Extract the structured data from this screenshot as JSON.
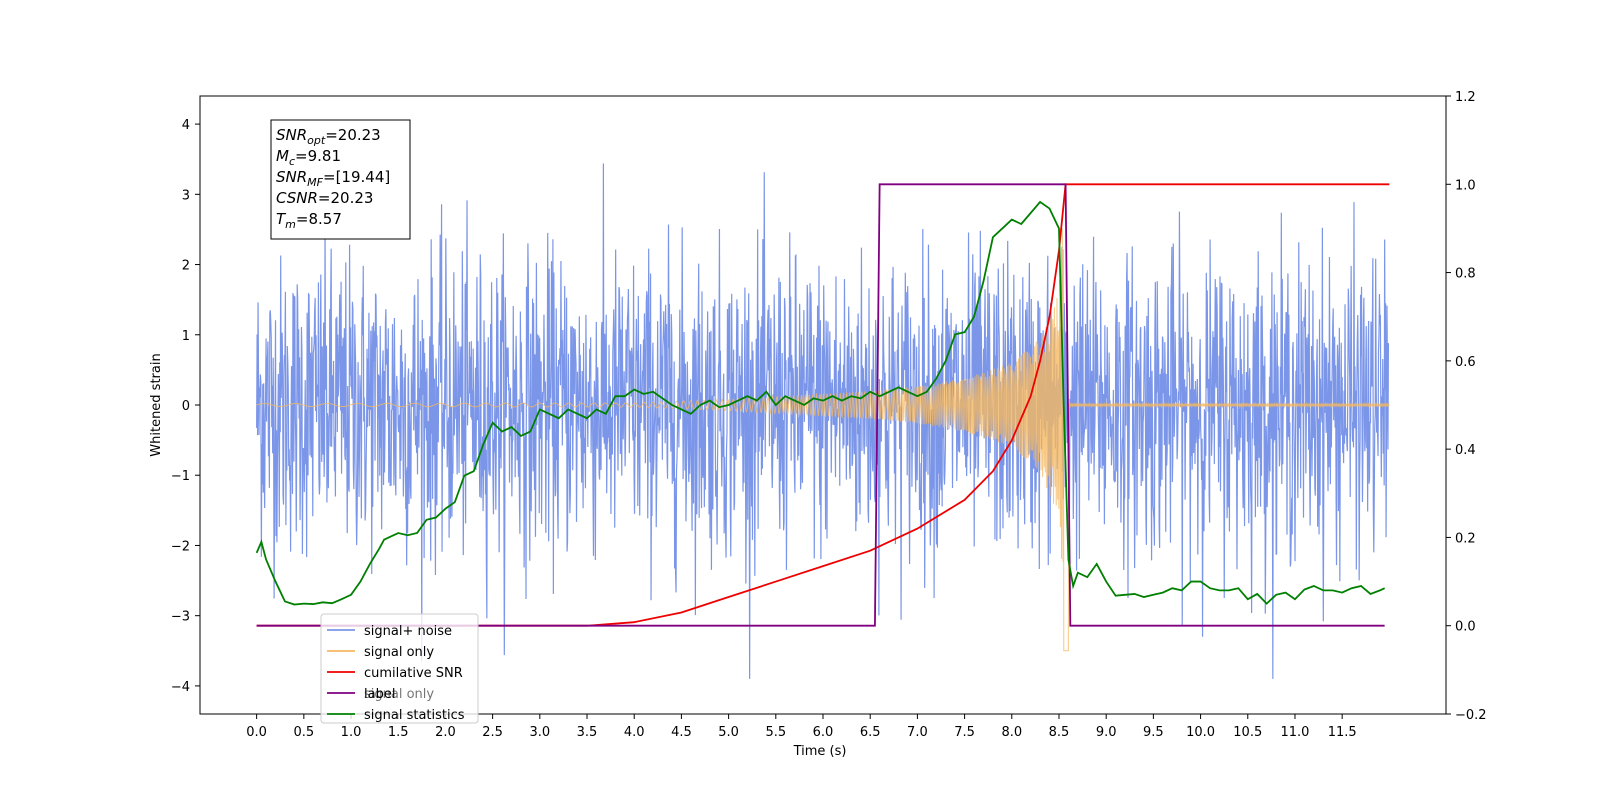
{
  "chart_data": {
    "type": "line",
    "xlabel": "Time (s)",
    "ylabel": "Whitened strain",
    "xlim": [
      -0.6,
      12.6
    ],
    "ylim_left": [
      -4.4,
      4.4
    ],
    "ylim_right": [
      -0.2,
      1.2
    ],
    "x_ticks": [
      "0.0",
      "0.5",
      "1.0",
      "1.5",
      "2.0",
      "2.5",
      "3.0",
      "3.5",
      "4.0",
      "4.5",
      "5.0",
      "5.5",
      "6.0",
      "6.5",
      "7.0",
      "7.5",
      "8.0",
      "8.5",
      "9.0",
      "9.5",
      "10.0",
      "10.5",
      "11.0",
      "11.5"
    ],
    "y_ticks_left": [
      "4",
      "3",
      "2",
      "1",
      "0",
      "−1",
      "−2",
      "−3",
      "−4"
    ],
    "y_ticks_right": [
      "1.2",
      "1.0",
      "0.8",
      "0.6",
      "0.4",
      "0.2",
      "0.0",
      "−0.2"
    ],
    "legend": {
      "placement": "lower-left",
      "entries": [
        "signal+ noise",
        "signal only",
        "cumilative SNR",
        "label",
        "signal statistics"
      ],
      "ghost_entries": [
        "signal only"
      ]
    },
    "annotation": {
      "lines": [
        {
          "sym": "SNR",
          "sub": "opt",
          "value": "=20.23"
        },
        {
          "sym": "M",
          "sub": "c",
          "value": "=9.81"
        },
        {
          "sym": "SNR",
          "sub": "MF",
          "value": "=[19.44]"
        },
        {
          "sym": "CSNR",
          "sub": "",
          "value": "=20.23"
        },
        {
          "sym": "T",
          "sub": "m",
          "value": "=8.57"
        }
      ]
    },
    "series": [
      {
        "name": "signal+ noise",
        "axis": "left",
        "color": "#7b96e8",
        "description": "dense white noise over 0-12 s, std about 1, peaks about +/-4"
      },
      {
        "name": "signal only",
        "axis": "left",
        "color": "#f5b860",
        "description": "chirp waveform growing to merger at 8.57 s",
        "envelope": {
          "x": [
            0,
            4,
            5,
            6,
            6.5,
            7,
            7.5,
            8,
            8.3,
            8.5,
            8.57,
            8.6,
            12
          ],
          "amplitude": [
            0.02,
            0.03,
            0.08,
            0.16,
            0.2,
            0.26,
            0.38,
            0.6,
            0.95,
            1.6,
            3.5,
            0.03,
            0.02
          ]
        }
      },
      {
        "name": "cumilative SNR",
        "axis": "right",
        "color": "#ee0000",
        "x": [
          0.0,
          3.0,
          3.5,
          4.0,
          4.5,
          5.0,
          5.5,
          6.0,
          6.5,
          7.0,
          7.5,
          7.8,
          8.0,
          8.2,
          8.3,
          8.4,
          8.5,
          8.57,
          12.0
        ],
        "y": [
          0.0,
          0.0,
          0.0,
          0.008,
          0.03,
          0.065,
          0.1,
          0.135,
          0.17,
          0.22,
          0.285,
          0.35,
          0.42,
          0.52,
          0.6,
          0.7,
          0.85,
          1.0,
          1.0
        ]
      },
      {
        "name": "label",
        "axis": "right",
        "color": "#800080",
        "x": [
          0.0,
          6.55,
          6.6,
          8.57,
          8.62,
          11.95
        ],
        "y": [
          0.0,
          0.0,
          1.0,
          1.0,
          0.0,
          0.0
        ]
      },
      {
        "name": "signal statistics",
        "axis": "right",
        "color": "#008000",
        "x": [
          0.0,
          0.05,
          0.1,
          0.2,
          0.3,
          0.4,
          0.5,
          0.6,
          0.7,
          0.8,
          0.9,
          1.0,
          1.1,
          1.2,
          1.3,
          1.35,
          1.4,
          1.5,
          1.6,
          1.7,
          1.8,
          1.9,
          2.0,
          2.1,
          2.2,
          2.3,
          2.4,
          2.5,
          2.6,
          2.7,
          2.8,
          2.9,
          3.0,
          3.1,
          3.2,
          3.3,
          3.4,
          3.5,
          3.6,
          3.7,
          3.8,
          3.9,
          4.0,
          4.1,
          4.2,
          4.3,
          4.4,
          4.5,
          4.6,
          4.7,
          4.8,
          4.9,
          5.0,
          5.1,
          5.2,
          5.3,
          5.4,
          5.5,
          5.6,
          5.7,
          5.8,
          5.9,
          6.0,
          6.1,
          6.2,
          6.3,
          6.4,
          6.5,
          6.6,
          6.7,
          6.8,
          6.9,
          7.0,
          7.1,
          7.2,
          7.3,
          7.4,
          7.5,
          7.6,
          7.7,
          7.8,
          7.9,
          8.0,
          8.1,
          8.2,
          8.3,
          8.4,
          8.5,
          8.55,
          8.6,
          8.65,
          8.7,
          8.8,
          8.9,
          9.0,
          9.1,
          9.2,
          9.3,
          9.4,
          9.5,
          9.6,
          9.7,
          9.8,
          9.9,
          10.0,
          10.1,
          10.2,
          10.3,
          10.4,
          10.5,
          10.6,
          10.7,
          10.8,
          10.9,
          11.0,
          11.1,
          11.2,
          11.3,
          11.4,
          11.5,
          11.6,
          11.7,
          11.8,
          11.9,
          11.95
        ],
        "y": [
          0.165,
          0.19,
          0.15,
          0.1,
          0.055,
          0.048,
          0.05,
          0.049,
          0.053,
          0.051,
          0.06,
          0.07,
          0.1,
          0.14,
          0.175,
          0.195,
          0.2,
          0.21,
          0.205,
          0.21,
          0.24,
          0.245,
          0.265,
          0.28,
          0.34,
          0.35,
          0.41,
          0.46,
          0.44,
          0.45,
          0.43,
          0.44,
          0.49,
          0.48,
          0.47,
          0.49,
          0.48,
          0.47,
          0.49,
          0.48,
          0.52,
          0.52,
          0.535,
          0.525,
          0.53,
          0.515,
          0.5,
          0.49,
          0.48,
          0.5,
          0.51,
          0.495,
          0.5,
          0.51,
          0.52,
          0.51,
          0.53,
          0.5,
          0.52,
          0.51,
          0.5,
          0.515,
          0.51,
          0.52,
          0.51,
          0.52,
          0.515,
          0.53,
          0.52,
          0.53,
          0.54,
          0.53,
          0.52,
          0.53,
          0.56,
          0.6,
          0.66,
          0.665,
          0.7,
          0.78,
          0.88,
          0.9,
          0.92,
          0.91,
          0.935,
          0.96,
          0.945,
          0.9,
          0.5,
          0.15,
          0.09,
          0.12,
          0.11,
          0.14,
          0.1,
          0.068,
          0.07,
          0.072,
          0.065,
          0.07,
          0.075,
          0.085,
          0.08,
          0.1,
          0.1,
          0.085,
          0.08,
          0.08,
          0.085,
          0.06,
          0.072,
          0.05,
          0.07,
          0.075,
          0.06,
          0.082,
          0.09,
          0.08,
          0.08,
          0.075,
          0.085,
          0.09,
          0.072,
          0.08,
          0.085
        ]
      }
    ]
  }
}
